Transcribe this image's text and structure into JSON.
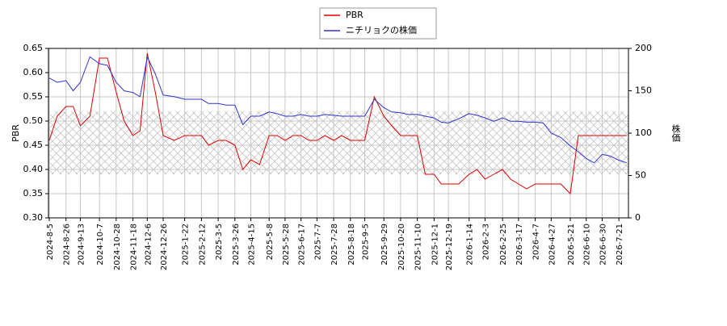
{
  "chart_data": {
    "type": "line",
    "x": [
      "2024-8-5",
      "2024-8-15",
      "2024-8-26",
      "2024-9-4",
      "2024-9-13",
      "2024-9-25",
      "2024-10-7",
      "2024-10-17",
      "2024-10-28",
      "2024-11-7",
      "2024-11-18",
      "2024-11-27",
      "2024-12-6",
      "2024-12-16",
      "2024-12-26",
      "2025-1-9",
      "2025-1-22",
      "2025-2-1",
      "2025-2-12",
      "2025-2-21",
      "2025-3-5",
      "2025-3-15",
      "2025-3-26",
      "2025-4-5",
      "2025-4-15",
      "2025-4-26",
      "2025-5-8",
      "2025-5-18",
      "2025-5-28",
      "2025-6-7",
      "2025-6-17",
      "2025-6-27",
      "2025-7-7",
      "2025-7-17",
      "2025-7-28",
      "2025-8-7",
      "2025-8-18",
      "2025-8-27",
      "2025-9-5",
      "2025-9-17",
      "2025-9-29",
      "2025-10-9",
      "2025-10-20",
      "2025-10-30",
      "2025-11-10",
      "2025-11-20",
      "2025-12-1",
      "2025-12-10",
      "2025-12-19",
      "2026-1-1",
      "2026-1-14",
      "2026-1-24",
      "2026-2-3",
      "2026-2-14",
      "2026-2-25",
      "2026-3-7",
      "2026-3-17",
      "2026-3-27",
      "2026-4-7",
      "2026-4-17",
      "2026-4-27",
      "2026-5-9",
      "2026-5-21",
      "2026-5-31",
      "2026-6-10",
      "2026-6-20",
      "2026-6-30",
      "2026-7-10",
      "2026-7-21",
      "2026-7-31"
    ],
    "series": [
      {
        "name": "PBR",
        "color": "#dd0000",
        "axis": "y",
        "values": [
          0.46,
          0.51,
          0.53,
          0.53,
          0.49,
          0.51,
          0.63,
          0.63,
          0.56,
          0.5,
          0.47,
          0.48,
          0.64,
          0.56,
          0.47,
          0.46,
          0.47,
          0.47,
          0.47,
          0.45,
          0.46,
          0.46,
          0.45,
          0.4,
          0.42,
          0.41,
          0.47,
          0.47,
          0.46,
          0.47,
          0.47,
          0.46,
          0.46,
          0.47,
          0.46,
          0.47,
          0.46,
          0.46,
          0.46,
          0.55,
          0.51,
          0.49,
          0.47,
          0.47,
          0.47,
          0.39,
          0.39,
          0.37,
          0.37,
          0.37,
          0.39,
          0.4,
          0.38,
          0.39,
          0.4,
          0.38,
          0.37,
          0.36,
          0.37,
          0.37,
          0.37,
          0.37,
          0.35,
          0.47,
          0.47,
          0.47,
          0.47,
          0.47,
          0.47,
          0.47
        ]
      },
      {
        "name": "ニチリョクの株価",
        "color": "#3333cc",
        "axis": "y2",
        "values": [
          165,
          160,
          162,
          150,
          160,
          190,
          182,
          180,
          160,
          150,
          148,
          143,
          190,
          170,
          145,
          143,
          140,
          140,
          140,
          135,
          135,
          133,
          133,
          110,
          120,
          120,
          125,
          123,
          120,
          120,
          122,
          120,
          120,
          122,
          121,
          120,
          120,
          120,
          120,
          140,
          130,
          125,
          124,
          122,
          122,
          120,
          118,
          113,
          112,
          117,
          123,
          121,
          118,
          114,
          118,
          114,
          114,
          113,
          113,
          112,
          100,
          95,
          85,
          78,
          70,
          65,
          75,
          73,
          68,
          65
        ]
      }
    ],
    "y_label": "PBR",
    "y2_label": "株価",
    "xlim": [
      "2024-8-4",
      "2026-8-2"
    ],
    "xticks": [
      "2024-8-5",
      "2024-8-26",
      "2024-9-13",
      "2024-10-7",
      "2024-10-28",
      "2024-11-18",
      "2024-12-6",
      "2024-12-26",
      "2025-1-22",
      "2025-2-12",
      "2025-3-5",
      "2025-3-26",
      "2025-4-15",
      "2025-5-8",
      "2025-5-28",
      "2025-6-17",
      "2025-7-7",
      "2025-7-28",
      "2025-8-18",
      "2025-9-5",
      "2025-9-29",
      "2025-10-20",
      "2025-11-10",
      "2025-12-1",
      "2025-12-19",
      "2026-1-14",
      "2026-2-3",
      "2026-2-25",
      "2026-3-17",
      "2026-4-7",
      "2026-4-27",
      "2026-5-21",
      "2026-6-10",
      "2026-6-30",
      "2026-7-21"
    ],
    "ylim": [
      0.3,
      0.65
    ],
    "yticks": [
      {
        "value": 0.3,
        "label": "0.30"
      },
      0.35,
      {
        "value": 0.4,
        "label": "0.40"
      },
      0.45,
      {
        "value": 0.5,
        "label": "0.50"
      },
      0.55,
      {
        "value": 0.6,
        "label": "0.60"
      },
      0.65
    ],
    "y2lim": [
      0,
      200
    ],
    "y2ticks": [
      0,
      50,
      100,
      150,
      200
    ],
    "shaded_band": [
      0.39,
      0.52
    ],
    "grid": true,
    "legend": "top"
  }
}
